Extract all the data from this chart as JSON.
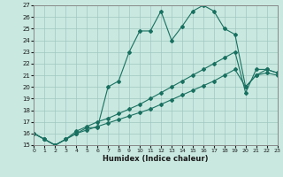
{
  "xlabel": "Humidex (Indice chaleur)",
  "xlim": [
    0,
    23
  ],
  "ylim": [
    15,
    27
  ],
  "xticks": [
    0,
    1,
    2,
    3,
    4,
    5,
    6,
    7,
    8,
    9,
    10,
    11,
    12,
    13,
    14,
    15,
    16,
    17,
    18,
    19,
    20,
    21,
    22,
    23
  ],
  "yticks": [
    15,
    16,
    17,
    18,
    19,
    20,
    21,
    22,
    23,
    24,
    25,
    26,
    27
  ],
  "bg_color": "#c8e8e0",
  "line_color": "#1a7060",
  "grid_color": "#a0c8c0",
  "s1x": [
    0,
    1,
    2,
    3,
    4,
    5,
    6,
    7,
    8,
    9,
    10,
    11,
    12,
    13,
    14,
    15,
    16,
    17,
    18,
    19,
    20,
    21,
    22,
    23
  ],
  "s1y": [
    16,
    15.5,
    15,
    15.5,
    16,
    16.5,
    16.5,
    20,
    20.5,
    23,
    24.8,
    24.8,
    26.5,
    24,
    25.2,
    26.5,
    27,
    26.5,
    25,
    24.5,
    20,
    21,
    21.5,
    21.2
  ],
  "s2x": [
    0,
    1,
    2,
    3,
    4,
    5,
    6,
    7,
    8,
    9,
    10,
    11,
    12,
    13,
    14,
    15,
    16,
    17,
    18,
    19,
    20,
    21,
    22,
    23
  ],
  "s2y": [
    16,
    15.5,
    15,
    15.5,
    16.2,
    16.6,
    17.0,
    17.3,
    17.7,
    18.1,
    18.5,
    19.0,
    19.5,
    20.0,
    20.5,
    21.0,
    21.5,
    22.0,
    22.5,
    23.0,
    19.5,
    21.5,
    21.5,
    21.2
  ],
  "s3x": [
    0,
    1,
    2,
    3,
    4,
    5,
    6,
    7,
    8,
    9,
    10,
    11,
    12,
    13,
    14,
    15,
    16,
    17,
    18,
    19,
    20,
    21,
    22,
    23
  ],
  "s3y": [
    16,
    15.5,
    15,
    15.5,
    16,
    16.3,
    16.6,
    16.9,
    17.2,
    17.5,
    17.8,
    18.1,
    18.5,
    18.9,
    19.3,
    19.7,
    20.1,
    20.5,
    21.0,
    21.5,
    20.0,
    21.0,
    21.2,
    21.0
  ]
}
